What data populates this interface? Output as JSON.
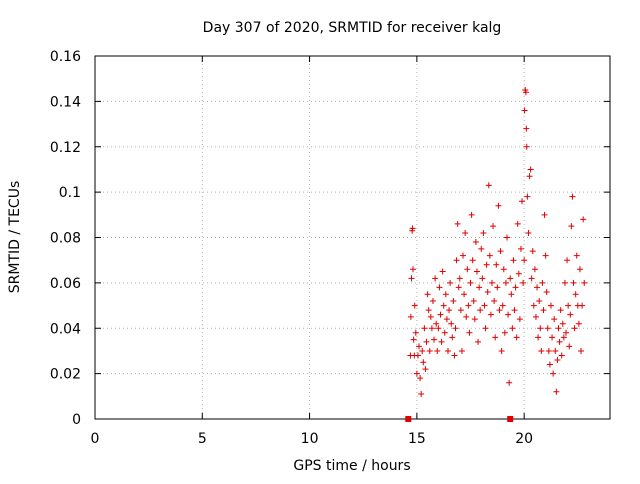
{
  "chart_data": {
    "type": "scatter",
    "title": "Day 307 of 2020, SRMTID for receiver kalg",
    "xlabel": "GPS time / hours",
    "ylabel": "SRMTID / TECUs",
    "xlim": [
      0,
      24
    ],
    "ylim": [
      0,
      0.16
    ],
    "x_ticks": [
      0,
      5,
      10,
      15,
      20
    ],
    "x_tick_labels": [
      "0",
      "5",
      "10",
      "15",
      "20"
    ],
    "y_ticks": [
      0,
      0.02,
      0.04,
      0.06,
      0.08,
      0.1,
      0.12,
      0.14,
      0.16
    ],
    "y_tick_labels": [
      "0",
      "0.02",
      "0.04",
      "0.06",
      "0.08",
      "0.1",
      "0.12",
      "0.14",
      "0.16"
    ],
    "grid": true,
    "marker": "+",
    "series": [
      {
        "name": "SRMTID",
        "color": "#e00000",
        "points": [
          [
            14.7,
            0.028
          ],
          [
            14.72,
            0.045
          ],
          [
            14.75,
            0.062
          ],
          [
            14.78,
            0.083
          ],
          [
            14.8,
            0.084
          ],
          [
            14.82,
            0.066
          ],
          [
            14.85,
            0.035
          ],
          [
            14.88,
            0.028
          ],
          [
            14.9,
            0.05
          ],
          [
            14.95,
            0.038
          ],
          [
            15.0,
            0.02
          ],
          [
            15.05,
            0.028
          ],
          [
            15.1,
            0.032
          ],
          [
            15.15,
            0.018
          ],
          [
            15.2,
            0.011
          ],
          [
            15.25,
            0.03
          ],
          [
            15.3,
            0.025
          ],
          [
            15.35,
            0.04
          ],
          [
            15.4,
            0.022
          ],
          [
            15.45,
            0.034
          ],
          [
            15.5,
            0.055
          ],
          [
            15.55,
            0.048
          ],
          [
            15.6,
            0.03
          ],
          [
            15.65,
            0.045
          ],
          [
            15.7,
            0.04
          ],
          [
            15.75,
            0.052
          ],
          [
            15.8,
            0.035
          ],
          [
            15.85,
            0.062
          ],
          [
            15.9,
            0.042
          ],
          [
            15.95,
            0.03
          ],
          [
            16.0,
            0.04
          ],
          [
            16.05,
            0.058
          ],
          [
            16.1,
            0.046
          ],
          [
            16.15,
            0.034
          ],
          [
            16.2,
            0.065
          ],
          [
            16.25,
            0.05
          ],
          [
            16.3,
            0.038
          ],
          [
            16.35,
            0.055
          ],
          [
            16.4,
            0.044
          ],
          [
            16.45,
            0.03
          ],
          [
            16.5,
            0.048
          ],
          [
            16.55,
            0.06
          ],
          [
            16.6,
            0.042
          ],
          [
            16.65,
            0.036
          ],
          [
            16.7,
            0.052
          ],
          [
            16.75,
            0.028
          ],
          [
            16.8,
            0.04
          ],
          [
            16.85,
            0.07
          ],
          [
            16.9,
            0.086
          ],
          [
            16.95,
            0.058
          ],
          [
            17.0,
            0.062
          ],
          [
            17.05,
            0.048
          ],
          [
            17.1,
            0.03
          ],
          [
            17.15,
            0.072
          ],
          [
            17.2,
            0.055
          ],
          [
            17.25,
            0.082
          ],
          [
            17.3,
            0.045
          ],
          [
            17.35,
            0.066
          ],
          [
            17.4,
            0.05
          ],
          [
            17.45,
            0.038
          ],
          [
            17.5,
            0.06
          ],
          [
            17.55,
            0.09
          ],
          [
            17.6,
            0.07
          ],
          [
            17.65,
            0.052
          ],
          [
            17.7,
            0.044
          ],
          [
            17.75,
            0.078
          ],
          [
            17.8,
            0.065
          ],
          [
            17.85,
            0.034
          ],
          [
            17.9,
            0.058
          ],
          [
            17.95,
            0.048
          ],
          [
            18.0,
            0.075
          ],
          [
            18.05,
            0.062
          ],
          [
            18.1,
            0.082
          ],
          [
            18.15,
            0.05
          ],
          [
            18.2,
            0.04
          ],
          [
            18.25,
            0.068
          ],
          [
            18.3,
            0.056
          ],
          [
            18.35,
            0.103
          ],
          [
            18.4,
            0.072
          ],
          [
            18.45,
            0.046
          ],
          [
            18.5,
            0.06
          ],
          [
            18.55,
            0.085
          ],
          [
            18.6,
            0.052
          ],
          [
            18.65,
            0.036
          ],
          [
            18.7,
            0.068
          ],
          [
            18.75,
            0.058
          ],
          [
            18.8,
            0.094
          ],
          [
            18.85,
            0.048
          ],
          [
            18.9,
            0.074
          ],
          [
            18.95,
            0.03
          ],
          [
            19.0,
            0.05
          ],
          [
            19.05,
            0.066
          ],
          [
            19.1,
            0.038
          ],
          [
            19.15,
            0.06
          ],
          [
            19.2,
            0.08
          ],
          [
            19.25,
            0.046
          ],
          [
            19.3,
            0.016
          ],
          [
            19.35,
            0.062
          ],
          [
            19.4,
            0.055
          ],
          [
            19.45,
            0.04
          ],
          [
            19.5,
            0.07
          ],
          [
            19.55,
            0.048
          ],
          [
            19.6,
            0.058
          ],
          [
            19.65,
            0.036
          ],
          [
            19.7,
            0.086
          ],
          [
            19.75,
            0.064
          ],
          [
            19.8,
            0.044
          ],
          [
            19.85,
            0.075
          ],
          [
            19.9,
            0.096
          ],
          [
            19.95,
            0.06
          ],
          [
            20.0,
            0.07
          ],
          [
            20.02,
            0.136
          ],
          [
            20.05,
            0.145
          ],
          [
            20.08,
            0.144
          ],
          [
            20.1,
            0.128
          ],
          [
            20.12,
            0.12
          ],
          [
            20.15,
            0.098
          ],
          [
            20.2,
            0.082
          ],
          [
            20.25,
            0.107
          ],
          [
            20.3,
            0.11
          ],
          [
            20.35,
            0.062
          ],
          [
            20.4,
            0.074
          ],
          [
            20.45,
            0.05
          ],
          [
            20.5,
            0.066
          ],
          [
            20.55,
            0.045
          ],
          [
            20.6,
            0.058
          ],
          [
            20.65,
            0.036
          ],
          [
            20.7,
            0.052
          ],
          [
            20.75,
            0.04
          ],
          [
            20.8,
            0.03
          ],
          [
            20.85,
            0.06
          ],
          [
            20.9,
            0.048
          ],
          [
            20.95,
            0.09
          ],
          [
            21.0,
            0.072
          ],
          [
            21.05,
            0.056
          ],
          [
            21.1,
            0.04
          ],
          [
            21.15,
            0.03
          ],
          [
            21.2,
            0.024
          ],
          [
            21.25,
            0.05
          ],
          [
            21.3,
            0.036
          ],
          [
            21.35,
            0.02
          ],
          [
            21.4,
            0.044
          ],
          [
            21.45,
            0.03
          ],
          [
            21.5,
            0.012
          ],
          [
            21.55,
            0.026
          ],
          [
            21.6,
            0.04
          ],
          [
            21.65,
            0.034
          ],
          [
            21.7,
            0.048
          ],
          [
            21.75,
            0.028
          ],
          [
            21.8,
            0.042
          ],
          [
            21.85,
            0.036
          ],
          [
            21.9,
            0.06
          ],
          [
            21.95,
            0.038
          ],
          [
            22.0,
            0.07
          ],
          [
            22.05,
            0.05
          ],
          [
            22.1,
            0.032
          ],
          [
            22.15,
            0.046
          ],
          [
            22.2,
            0.085
          ],
          [
            22.25,
            0.098
          ],
          [
            22.3,
            0.06
          ],
          [
            22.35,
            0.04
          ],
          [
            22.4,
            0.055
          ],
          [
            22.45,
            0.072
          ],
          [
            22.5,
            0.05
          ],
          [
            22.55,
            0.042
          ],
          [
            22.6,
            0.066
          ],
          [
            22.65,
            0.03
          ],
          [
            22.7,
            0.05
          ],
          [
            22.75,
            0.088
          ],
          [
            22.8,
            0.06
          ]
        ]
      }
    ],
    "bottom_markers": [
      {
        "label": "",
        "x": 14.6,
        "color": "#e00000"
      },
      {
        "label": "",
        "x": 19.35,
        "color": "#e00000"
      }
    ]
  }
}
